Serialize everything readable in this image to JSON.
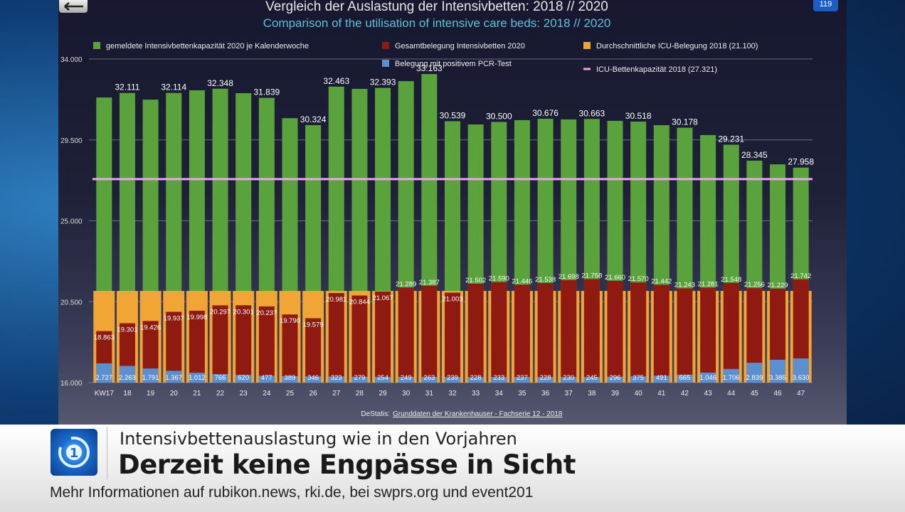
{
  "corner_badge": "119",
  "chart_data": {
    "type": "bar",
    "title": "Vergleich der Auslastung der Intensivbetten: 2018 // 2020",
    "subtitle": "Comparison of the utilisation of intensive care beds: 2018 // 2020",
    "categories": [
      "KW17",
      "18",
      "19",
      "20",
      "21",
      "22",
      "23",
      "24",
      "25",
      "26",
      "27",
      "28",
      "29",
      "30",
      "31",
      "32",
      "33",
      "34",
      "35",
      "36",
      "37",
      "38",
      "39",
      "40",
      "41",
      "42",
      "43",
      "44",
      "45",
      "46",
      "47"
    ],
    "ylim": [
      16000,
      34000
    ],
    "yticks": [
      "34.000",
      "29.500",
      "25.000",
      "20.500",
      "16.000"
    ],
    "ytick_values": [
      34000,
      29500,
      25000,
      20500,
      16000
    ],
    "grid": true,
    "legend_placement": "top",
    "series": [
      {
        "name": "gemeldete Intensivbettenkapazität 2020 je Kalenderwoche",
        "color": "#5aa33c",
        "values": [
          31860,
          32111,
          31740,
          32114,
          32260,
          32348,
          32100,
          31839,
          30710,
          30324,
          32463,
          32340,
          32393,
          32770,
          33163,
          30539,
          30360,
          30500,
          30600,
          30676,
          30640,
          30663,
          30560,
          30518,
          30320,
          30178,
          29770,
          29231,
          28345,
          28140,
          27958
        ],
        "labels": [
          null,
          "32.111",
          null,
          "32.114",
          null,
          "32.348",
          null,
          "31.839",
          null,
          "30.324",
          "32.463",
          null,
          "32.393",
          null,
          "33.163",
          "30.539",
          null,
          "30.500",
          null,
          "30.676",
          null,
          "30.663",
          null,
          "30.518",
          null,
          "30.178",
          null,
          "29.231",
          "28.345",
          null,
          "27.958"
        ]
      },
      {
        "name": "Gesamtbelegung Intensivbetten 2020",
        "color": "#8e1a12",
        "values": [
          18863,
          19301,
          19426,
          19937,
          19998,
          20297,
          20301,
          20237,
          19790,
          19579,
          20981,
          20844,
          21067,
          21289,
          21387,
          21003,
          21502,
          21590,
          21446,
          21538,
          21698,
          21758,
          21660,
          21570,
          21442,
          21243,
          21281,
          21548,
          21256,
          21229,
          21742
        ],
        "labels": [
          "18.863",
          "19.301",
          "19.426",
          "19.937",
          "19.998",
          "20.297",
          "20.301",
          "20.237",
          "19.790",
          "19.579",
          "20.981",
          "20.844",
          "21.067",
          "21.289",
          "21.387",
          "21.003",
          "21.502",
          "21.590",
          "21.446",
          "21.538",
          "21.698",
          "21.758",
          "21.660",
          "21.570",
          "21.442",
          "21.243",
          "21.281",
          "21.548",
          "21.256",
          "21.229",
          "21.742"
        ]
      },
      {
        "name": "Durchschnittliche ICU-Belegung 2018 (21.100)",
        "color": "#f0a535",
        "value": 21100
      },
      {
        "name": "Belegung mit positivem PCR-Test",
        "color": "#5b8fd0",
        "values": [
          2727,
          2263,
          1791,
          1367,
          1012,
          766,
          620,
          477,
          389,
          346,
          323,
          279,
          254,
          249,
          263,
          239,
          228,
          233,
          237,
          228,
          230,
          245,
          296,
          375,
          491,
          665,
          1046,
          1706,
          2839,
          3385,
          3630
        ],
        "labels": [
          "2.727",
          "2.263",
          "1.791",
          "1.367",
          "1.012",
          "766",
          "620",
          "477",
          "389",
          "346",
          "323",
          "279",
          "254",
          "249",
          "263",
          "239",
          "228",
          "233",
          "237",
          "228",
          "230",
          "245",
          "296",
          "375",
          "491",
          "665",
          "1.046",
          "1.706",
          "2.839",
          "3.385",
          "3.630"
        ]
      },
      {
        "name": "ICU-Bettenkapazität 2018 (27.321)",
        "color": "#e7a6e6",
        "value": 27321,
        "type": "line"
      }
    ],
    "source_prefix": "DeStatis:",
    "source_link": "Grunddaten der Krankenhauser - Fachserie 12 - 2018"
  },
  "banner": {
    "subtitle": "Intensivbettenauslastung wie in den Vorjahren",
    "headline": "Derzeit keine Engpässe in Sicht",
    "ticker": "Mehr Informationen auf rubikon.news, rki.de, bei swprs.org und event201"
  }
}
